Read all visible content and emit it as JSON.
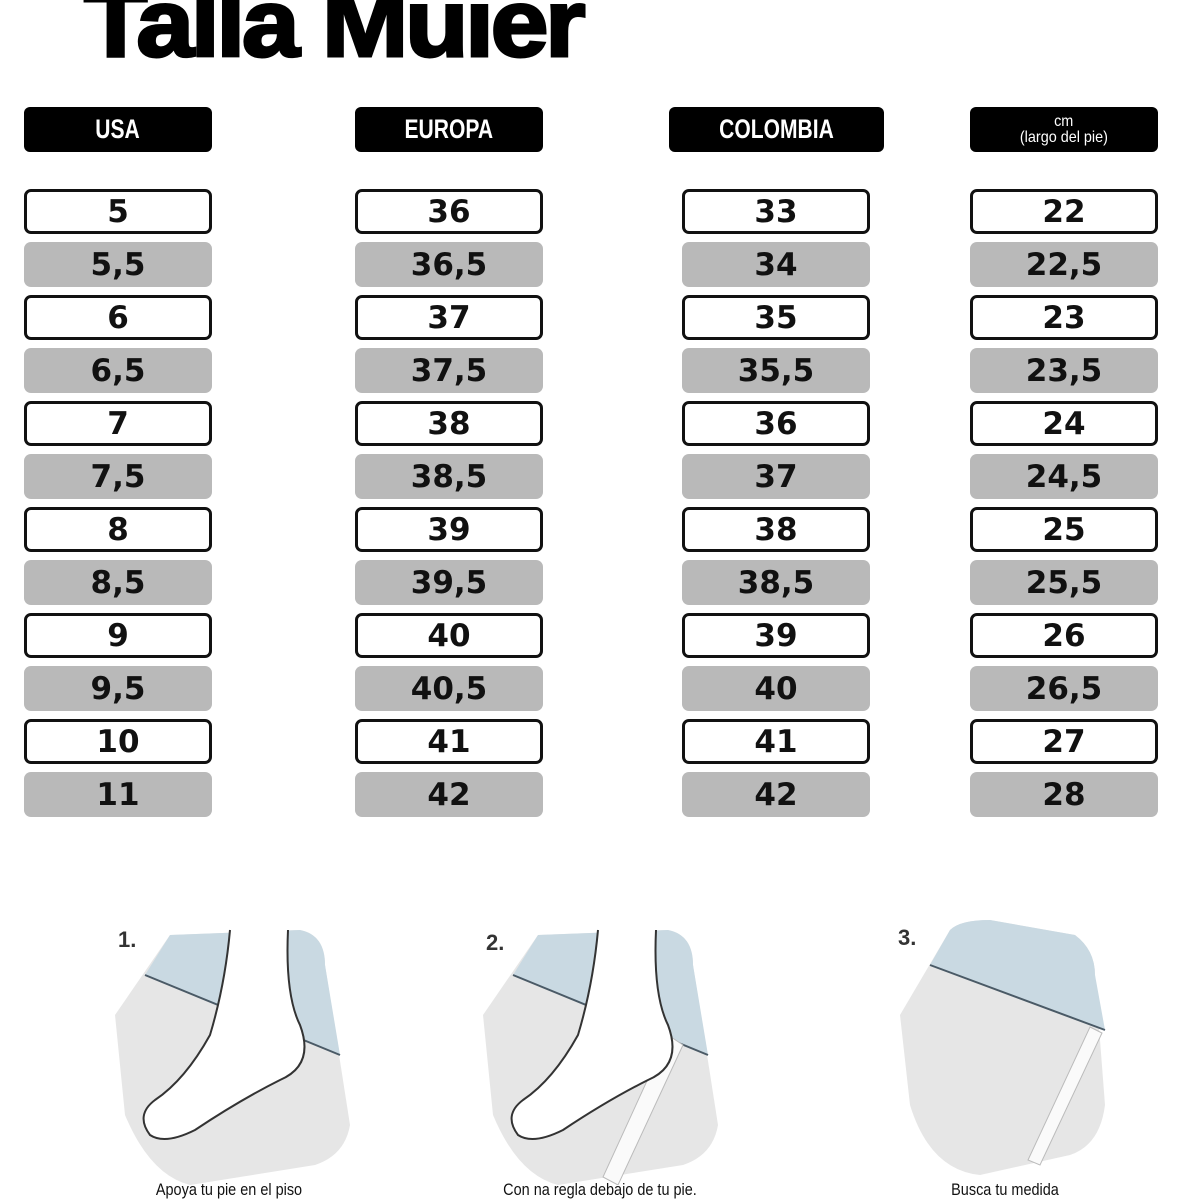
{
  "title": "Talla Muier",
  "headers": {
    "usa": "USA",
    "europa": "EUROPA",
    "colombia": "COLOMBIA",
    "cm_line1": "cm",
    "cm_line2": "(largo del pie)"
  },
  "table": {
    "usa": [
      "5",
      "5,5",
      "6",
      "6,5",
      "7",
      "7,5",
      "8",
      "8,5",
      "9",
      "9,5",
      "10",
      "11"
    ],
    "europa": [
      "36",
      "36,5",
      "37",
      "37,5",
      "38",
      "38,5",
      "39",
      "39,5",
      "40",
      "40,5",
      "41",
      "42"
    ],
    "colombia": [
      "33",
      "34",
      "35",
      "35,5",
      "36",
      "37",
      "38",
      "38,5",
      "39",
      "40",
      "41",
      "42"
    ],
    "cm": [
      "22",
      "22,5",
      "23",
      "23,5",
      "24",
      "24,5",
      "25",
      "25,5",
      "26",
      "26,5",
      "27",
      "28"
    ]
  },
  "steps": [
    {
      "number": "1.",
      "caption": "Apoya tu pie en el piso",
      "icon": "foot-on-floor-icon"
    },
    {
      "number": "2.",
      "caption": "Con na regla debajo de tu pie.",
      "icon": "foot-with-ruler-icon"
    },
    {
      "number": "3.",
      "caption": "Busca tu medida",
      "icon": "ruler-measure-icon"
    }
  ],
  "colors": {
    "header_bg": "#000000",
    "row_gray": "#b9b9b9",
    "wall_blue": "#c9d9e2",
    "floor_gray": "#e6e6e6"
  }
}
